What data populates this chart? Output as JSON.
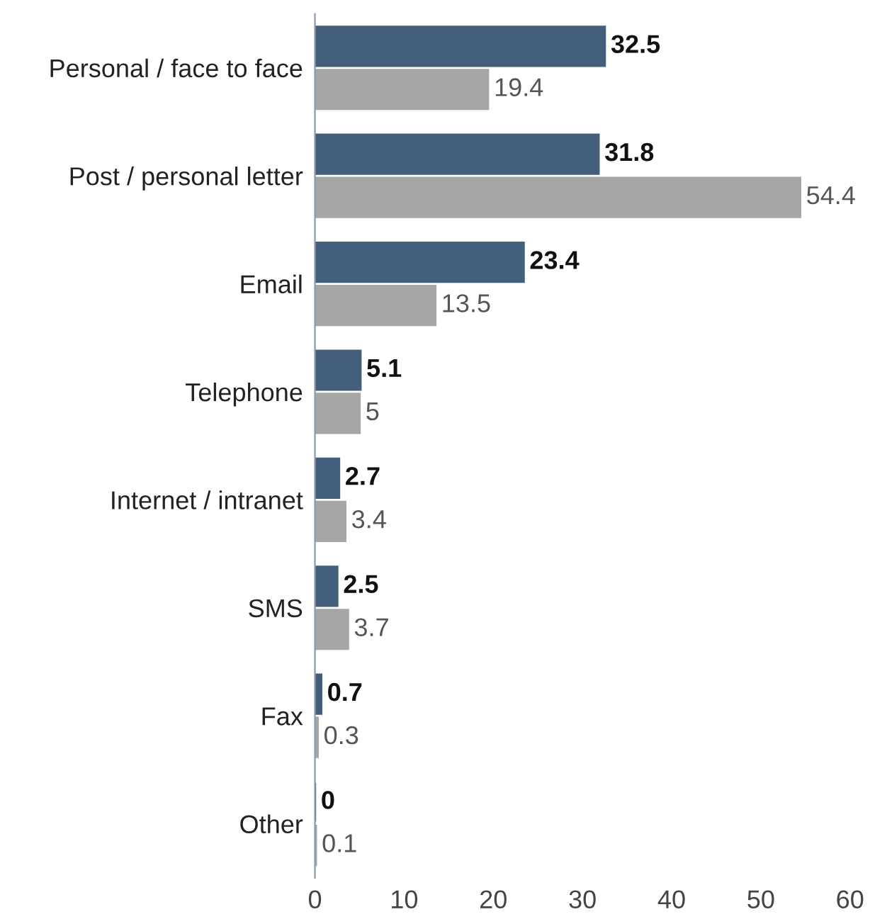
{
  "chart_data": {
    "type": "bar",
    "orientation": "horizontal",
    "categories": [
      "Personal / face to face",
      "Post / personal letter",
      "Email",
      "Telephone",
      "Internet / intranet",
      "SMS",
      "Fax",
      "Other"
    ],
    "series": [
      {
        "color": "#445f7b",
        "values": [
          32.5,
          31.8,
          23.4,
          5.1,
          2.7,
          2.5,
          0.7,
          0
        ]
      },
      {
        "color": "#a6a6a6",
        "values": [
          19.4,
          54.4,
          13.5,
          5,
          3.4,
          3.7,
          0.3,
          0.1
        ]
      }
    ],
    "xlim": [
      0,
      60
    ],
    "xticks": [
      0,
      10,
      20,
      30,
      40,
      50,
      60
    ],
    "data_labels": true,
    "grid": false,
    "legend": false
  }
}
